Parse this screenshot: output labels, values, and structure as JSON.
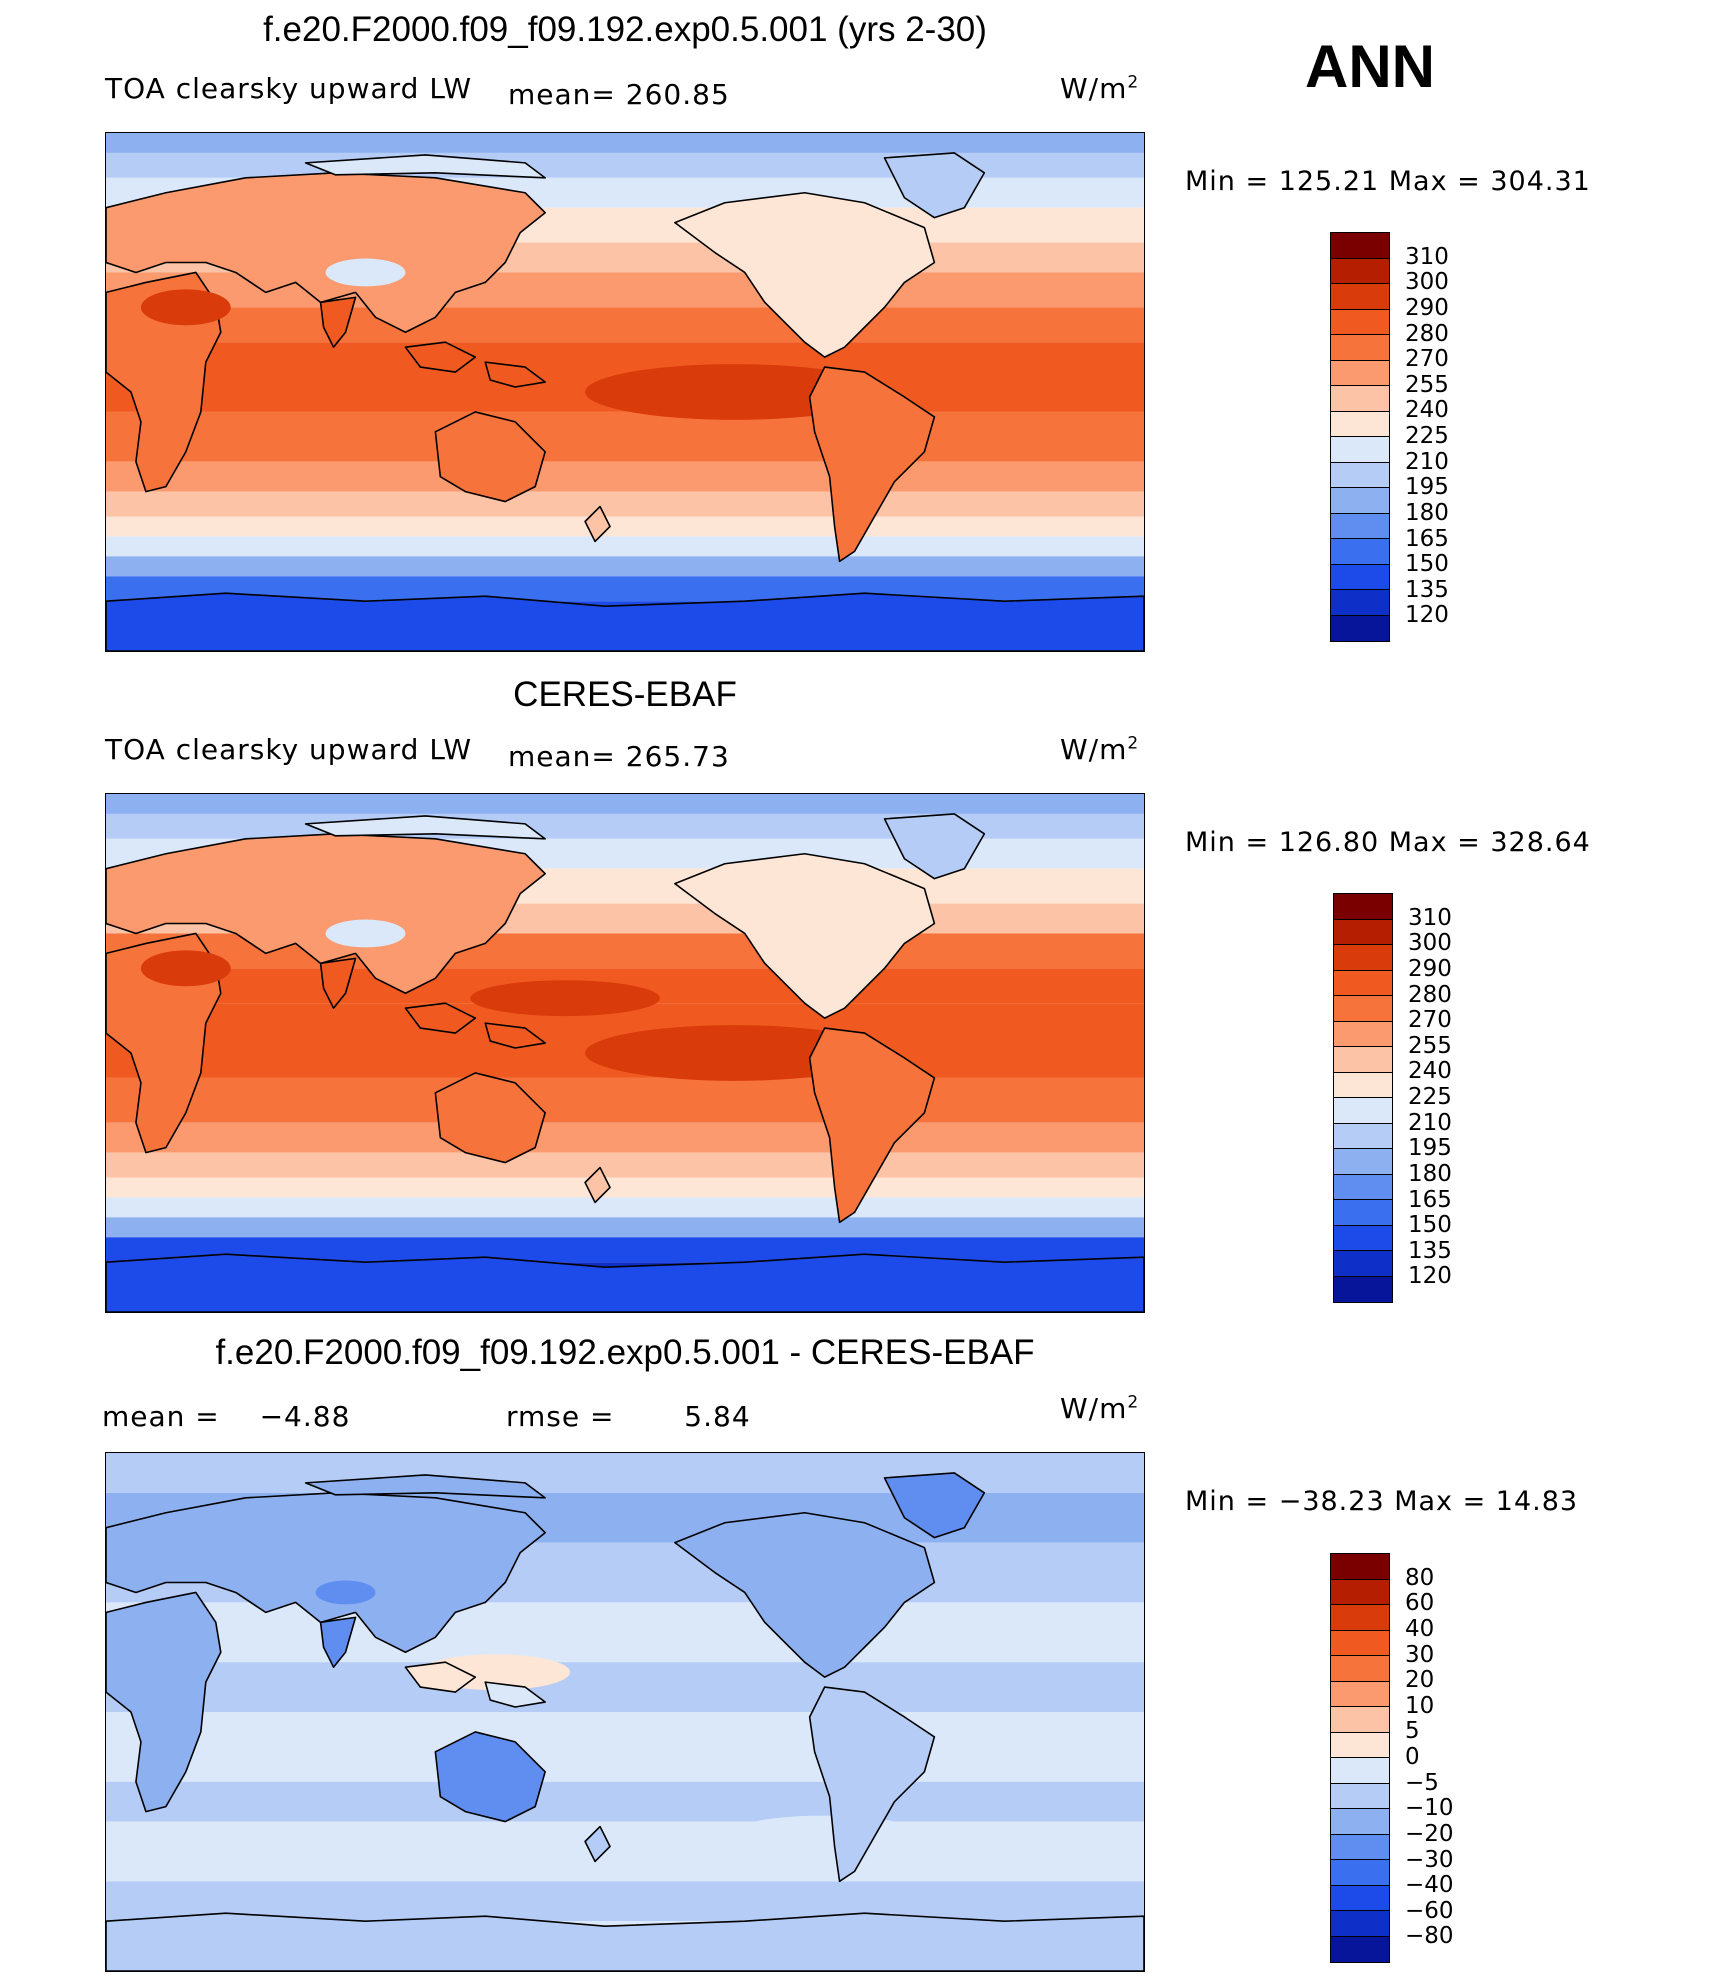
{
  "season": "ANN",
  "units": {
    "base": "W/m",
    "exp": "2"
  },
  "panels": [
    {
      "title": "f.e20.F2000.f09_f09.192.exp0.5.001 (yrs 2-30)",
      "variable": "TOA clearsky upward LW",
      "left_stat_label": "mean=",
      "left_stat_value": "260.85",
      "stats": "Min  =  125.21  Max  =  304.31",
      "field": "model"
    },
    {
      "title": "CERES-EBAF",
      "variable": "TOA clearsky upward LW",
      "left_stat_label": "mean=",
      "left_stat_value": "265.73",
      "stats": "Min  =  126.80  Max  =  328.64",
      "field": "obs"
    },
    {
      "title": "f.e20.F2000.f09_f09.192.exp0.5.001 - CERES-EBAF",
      "mean_label": "mean  =",
      "mean_value": "−4.88",
      "rmse_label": "rmse  =",
      "rmse_value": "5.84",
      "stats": "Min  =  −38.23  Max  =    14.83",
      "field": "diff"
    }
  ],
  "colorbars": {
    "absolute": {
      "labels": [
        "310",
        "300",
        "290",
        "280",
        "270",
        "255",
        "240",
        "225",
        "210",
        "195",
        "180",
        "165",
        "150",
        "135",
        "120"
      ],
      "colors": [
        "#7a0000",
        "#b51f00",
        "#d93b0a",
        "#f05a20",
        "#f7733c",
        "#fa9a6e",
        "#fcc3a6",
        "#fde6d6",
        "#dbe8fa",
        "#b5cdf6",
        "#8db0f1",
        "#5f8ef0",
        "#3a6ff0",
        "#1d4bea",
        "#0f30c8",
        "#06159a"
      ]
    },
    "difference": {
      "labels": [
        "80",
        "60",
        "40",
        "30",
        "20",
        "10",
        "5",
        "0",
        "−5",
        "−10",
        "−20",
        "−30",
        "−40",
        "−60",
        "−80"
      ],
      "colors": [
        "#7a0000",
        "#b51f00",
        "#d93b0a",
        "#f05a20",
        "#f7733c",
        "#fa9a6e",
        "#fcc3a6",
        "#fde6d6",
        "#dbe8fa",
        "#b5cdf6",
        "#8db0f1",
        "#5f8ef0",
        "#3a6ff0",
        "#1d4bea",
        "#0f30c8",
        "#06159a"
      ]
    }
  }
}
